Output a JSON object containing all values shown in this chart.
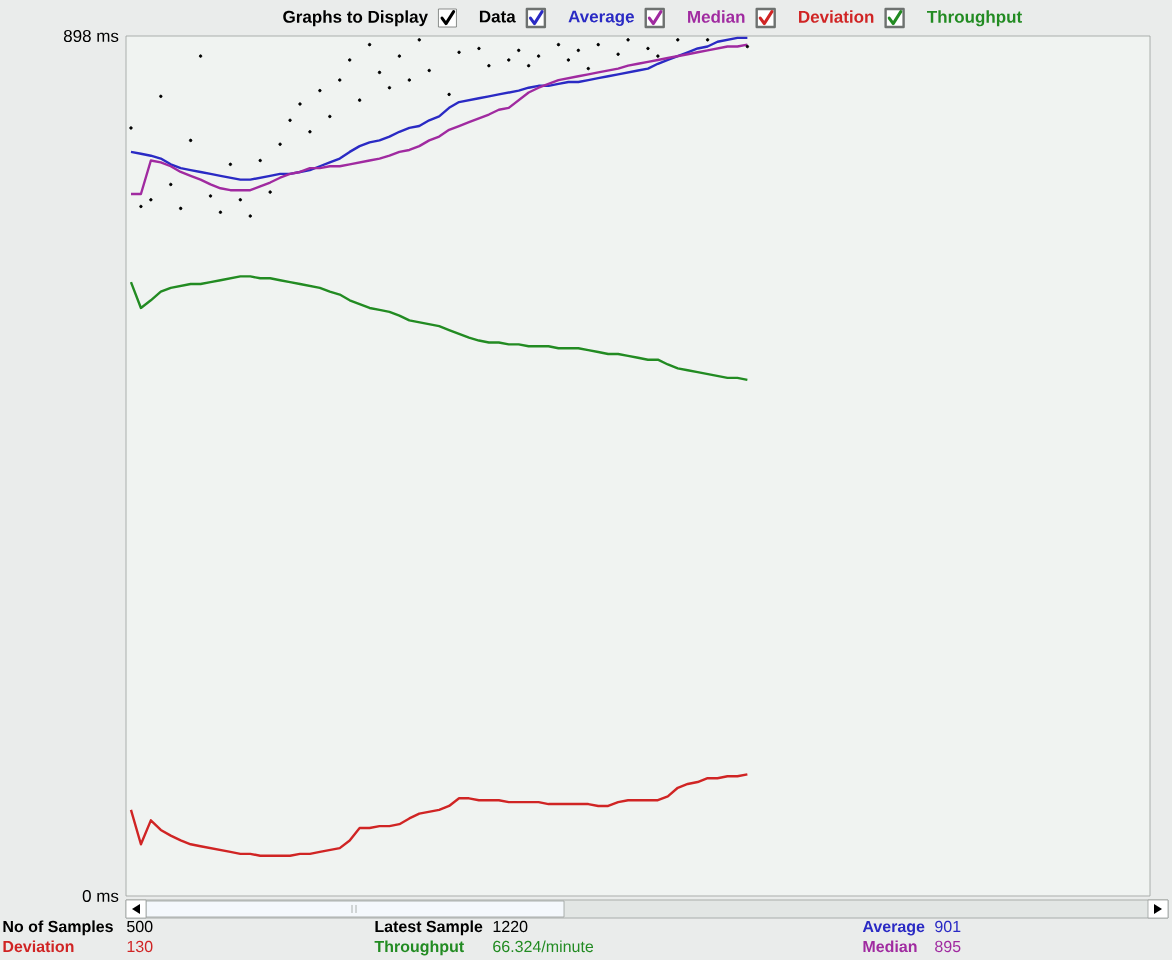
{
  "chart_data": {
    "type": "line",
    "legend_title": "Graphs to Display",
    "legend": "top",
    "tick_labels": "y",
    "categories": [
      null,
      null,
      null,
      null,
      null,
      null,
      null,
      null,
      null,
      null,
      null,
      null,
      null,
      null,
      null,
      null,
      null,
      null,
      null,
      null,
      null,
      null,
      null,
      null,
      null,
      null,
      null,
      null,
      null,
      null,
      null,
      null,
      null,
      null,
      null,
      null,
      null,
      null,
      null,
      null,
      null,
      null,
      null,
      null,
      null,
      null,
      null,
      null,
      null,
      null,
      null,
      null,
      null,
      null,
      null,
      null,
      null,
      null,
      null,
      null,
      null,
      null,
      null,
      null,
      null,
      null,
      null,
      null,
      null,
      null,
      null,
      null,
      null,
      null,
      null,
      null,
      null,
      null,
      null,
      null,
      null,
      null,
      null,
      null,
      null,
      null,
      null,
      null,
      null,
      null,
      null,
      null,
      null,
      null,
      null,
      null,
      null,
      null,
      null,
      null,
      null,
      null,
      null
    ],
    "series": [
      {
        "name": "Data",
        "type": "scatter",
        "color": "#000000",
        "values": [
          802,
          720,
          727,
          835,
          743,
          718,
          789,
          877,
          731,
          714,
          764,
          727,
          710,
          768,
          735,
          785,
          810,
          827,
          798,
          841,
          814,
          852,
          873,
          831,
          889,
          860,
          844,
          877,
          852,
          894,
          862,
          null,
          837,
          881,
          null,
          885,
          867,
          null,
          873,
          883,
          867,
          877,
          null,
          889,
          873,
          883,
          864,
          889,
          null,
          879,
          894,
          null,
          885,
          877,
          null,
          894,
          null,
          null,
          894,
          null,
          null,
          null,
          887,
          null,
          null,
          null,
          null,
          null,
          null,
          null,
          null,
          null,
          null,
          null,
          null,
          null,
          null,
          null,
          null,
          null,
          null,
          null,
          null,
          null,
          null,
          null,
          null,
          null,
          null,
          null,
          null,
          null,
          null,
          null,
          null,
          null,
          null,
          null,
          null,
          null,
          null,
          null,
          null
        ]
      },
      {
        "name": "Average",
        "color": "#2a2ac4",
        "values": [
          777,
          775,
          773,
          770,
          764,
          760,
          758,
          756,
          754,
          752,
          750,
          748,
          748,
          750,
          752,
          754,
          754,
          756,
          758,
          762,
          766,
          770,
          777,
          783,
          787,
          789,
          793,
          798,
          802,
          804,
          810,
          814,
          823,
          829,
          831,
          833,
          835,
          837,
          839,
          841,
          844,
          846,
          846,
          848,
          850,
          850,
          852,
          854,
          856,
          858,
          860,
          862,
          864,
          869,
          873,
          877,
          881,
          885,
          887,
          892,
          894,
          896,
          896,
          null,
          null,
          null,
          null,
          null,
          null,
          null,
          null,
          null,
          null,
          null,
          null,
          null,
          null,
          null,
          null,
          null,
          null,
          null,
          null,
          null,
          null,
          null,
          null,
          null,
          null,
          null,
          null,
          null,
          null,
          null,
          null,
          null,
          null,
          null,
          null,
          null,
          null,
          null,
          null
        ]
      },
      {
        "name": "Median",
        "color": "#a02aa0",
        "values": [
          733,
          733,
          768,
          766,
          762,
          756,
          752,
          748,
          743,
          739,
          737,
          737,
          737,
          741,
          745,
          750,
          754,
          756,
          760,
          760,
          762,
          762,
          764,
          766,
          768,
          770,
          773,
          777,
          779,
          783,
          789,
          793,
          800,
          804,
          808,
          812,
          816,
          821,
          823,
          831,
          839,
          844,
          848,
          852,
          854,
          856,
          858,
          860,
          862,
          864,
          867,
          869,
          871,
          873,
          875,
          877,
          879,
          881,
          883,
          885,
          887,
          887,
          889,
          null,
          null,
          null,
          null,
          null,
          null,
          null,
          null,
          null,
          null,
          null,
          null,
          null,
          null,
          null,
          null,
          null,
          null,
          null,
          null,
          null,
          null,
          null,
          null,
          null,
          null,
          null,
          null,
          null,
          null,
          null,
          null,
          null,
          null,
          null,
          null,
          null,
          null,
          null,
          null
        ]
      },
      {
        "name": "Deviation",
        "color": "#d02424",
        "values": [
          90,
          54,
          79,
          69,
          63,
          58,
          54,
          52,
          50,
          48,
          46,
          44,
          44,
          42,
          42,
          42,
          42,
          44,
          44,
          46,
          48,
          50,
          58,
          71,
          71,
          73,
          73,
          75,
          81,
          86,
          88,
          90,
          94,
          102,
          102,
          100,
          100,
          100,
          98,
          98,
          98,
          98,
          96,
          96,
          96,
          96,
          96,
          94,
          94,
          98,
          100,
          100,
          100,
          100,
          104,
          113,
          117,
          119,
          123,
          123,
          125,
          125,
          127,
          null,
          null,
          null,
          null,
          null,
          null,
          null,
          null,
          null,
          null,
          null,
          null,
          null,
          null,
          null,
          null,
          null,
          null,
          null,
          null,
          null,
          null,
          null,
          null,
          null,
          null,
          null,
          null,
          null,
          null,
          null,
          null,
          null,
          null,
          null,
          null,
          null,
          null,
          null,
          null
        ]
      },
      {
        "name": "Throughput",
        "color": "#228b22",
        "values": [
          641,
          614,
          622,
          631,
          635,
          637,
          639,
          639,
          641,
          643,
          645,
          647,
          647,
          645,
          645,
          643,
          641,
          639,
          637,
          635,
          631,
          628,
          622,
          618,
          614,
          612,
          610,
          606,
          601,
          599,
          597,
          595,
          591,
          587,
          583,
          580,
          578,
          578,
          576,
          576,
          574,
          574,
          574,
          572,
          572,
          572,
          570,
          568,
          566,
          566,
          564,
          562,
          560,
          560,
          555,
          551,
          549,
          547,
          545,
          543,
          541,
          541,
          539,
          null,
          null,
          null,
          null,
          null,
          null,
          null,
          null,
          null,
          null,
          null,
          null,
          null,
          null,
          null,
          null,
          null,
          null,
          null,
          null,
          null,
          null,
          null,
          null,
          null,
          null,
          null,
          null,
          null,
          null,
          null,
          null,
          null,
          null,
          null,
          null,
          null,
          null,
          null,
          null
        ]
      }
    ],
    "ylim": [
      0,
      898
    ],
    "yticks": [
      {
        "value": 0,
        "label": "0 ms"
      },
      {
        "value": 898,
        "label": "898 ms"
      }
    ],
    "annotations": [
      "No of Samples",
      "500",
      "Latest Sample",
      "1220",
      "Average",
      "901",
      "Deviation",
      "130",
      "Throughput",
      "66.324/minute",
      "Median",
      "895"
    ]
  }
}
